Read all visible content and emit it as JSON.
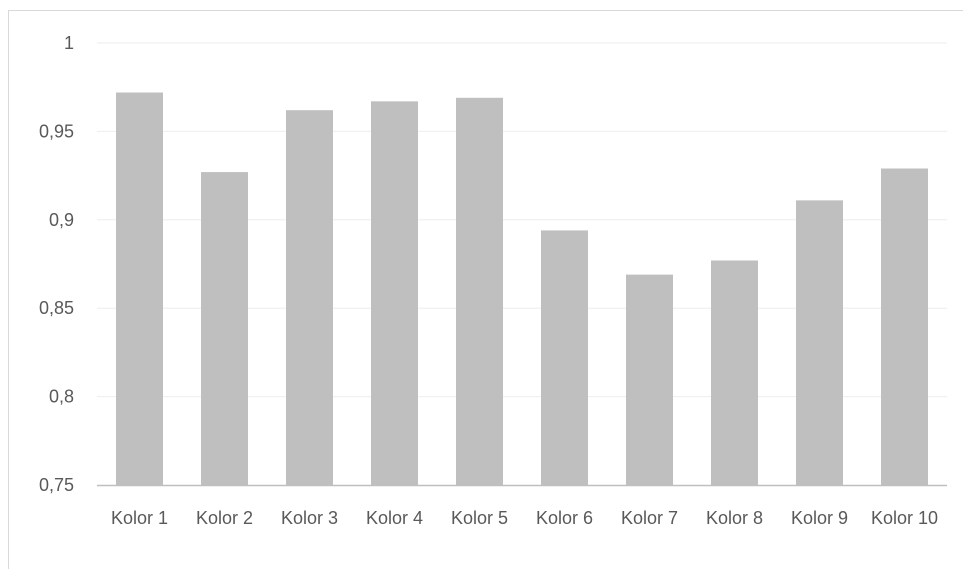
{
  "chart_data": {
    "type": "bar",
    "categories": [
      "Kolor 1",
      "Kolor 2",
      "Kolor 3",
      "Kolor 4",
      "Kolor 5",
      "Kolor 6",
      "Kolor 7",
      "Kolor 8",
      "Kolor 9",
      "Kolor 10"
    ],
    "values": [
      0.972,
      0.927,
      0.962,
      0.967,
      0.969,
      0.894,
      0.869,
      0.877,
      0.911,
      0.929
    ],
    "ylim": [
      0.75,
      1
    ],
    "yticks": [
      "0,75",
      "0,8",
      "0,85",
      "0,9",
      "0,95",
      "1"
    ],
    "title": "",
    "xlabel": "",
    "ylabel": "",
    "grid": true,
    "legend": "none",
    "bar_color": "#bfbfbf",
    "grid_color": "#eeeeee",
    "axis_color": "#bfbfbf",
    "text_color": "#595959"
  }
}
